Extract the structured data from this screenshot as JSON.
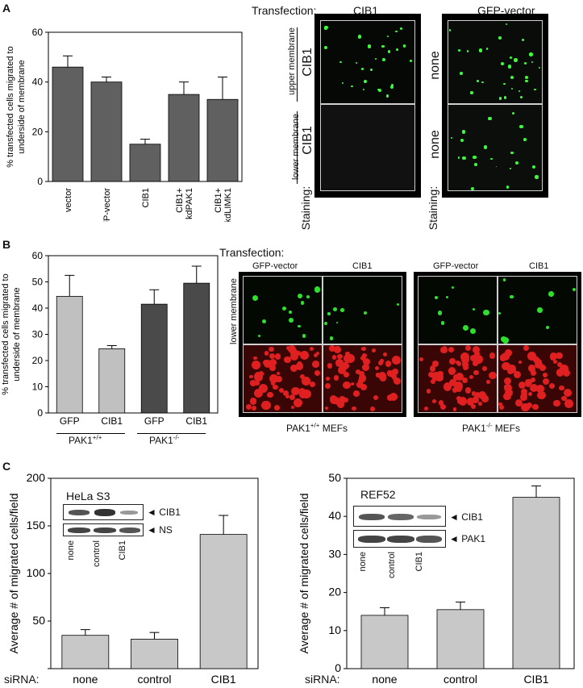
{
  "panels": {
    "A": {
      "label": "A",
      "transfection_label": "Transfection:",
      "transfection_cib1": "CIB1",
      "transfection_gfp": "GFP-vector",
      "upper_membrane": "upper membrane",
      "lower_membrane": "lower membrane",
      "staining_label": "Staining:",
      "stain_cib1_upper": "CIB1",
      "stain_cib1_lower": "CIB1",
      "stain_none_upper": "none",
      "stain_none_lower": "none"
    },
    "B": {
      "label": "B",
      "transfection_label": "Transfection:",
      "col1": "GFP-vector",
      "col2": "CIB1",
      "col3": "GFP-vector",
      "col4": "CIB1",
      "lower_membrane": "lower membrane",
      "caption_left": "PAK1+/+ MEFs",
      "caption_right": "PAK1-/- MEFs",
      "group1": "PAK1+/+",
      "group2": "PAK1-/-"
    },
    "C": {
      "label": "C",
      "hela_title": "HeLa S3",
      "hela_band1": "◄ CIB1",
      "hela_band2": "◄ NS",
      "hela_lanes": [
        "none",
        "control",
        "CIB1"
      ],
      "ref_title": "REF52",
      "ref_band1": "◄ CIB1",
      "ref_band2": "◄ PAK1",
      "ref_lanes": [
        "none",
        "control",
        "CIB1"
      ],
      "sirna_label": "siRNA:"
    }
  },
  "chart_data": [
    {
      "id": "A",
      "type": "bar",
      "categories": [
        "vector",
        "GFP-vector",
        "CIB1",
        "CIB1+ kdPAK1",
        "CIB1+ kdLIMK1"
      ],
      "values": [
        46,
        40,
        15,
        35,
        33
      ],
      "errors": [
        4.5,
        2,
        2,
        5,
        9
      ],
      "ylabel": "% transfected cells migrated to underside of membrane",
      "ylim": [
        0,
        60
      ],
      "yticks": [
        0,
        20,
        40,
        60
      ],
      "bar_color": "#606060"
    },
    {
      "id": "B",
      "type": "bar",
      "categories": [
        "GFP",
        "CIB1",
        "GFP",
        "CIB1"
      ],
      "values": [
        44.5,
        24.5,
        41.5,
        49.5
      ],
      "errors": [
        8,
        1.2,
        5.5,
        6.5
      ],
      "colors": [
        "#c0c0c0",
        "#c0c0c0",
        "#4a4a4a",
        "#4a4a4a"
      ],
      "ylabel": "% transfected cells migrated to underside of membrane",
      "ylim": [
        0,
        60
      ],
      "yticks": [
        0,
        10,
        20,
        30,
        40,
        50,
        60
      ]
    },
    {
      "id": "C1",
      "type": "bar",
      "categories": [
        "none",
        "control",
        "CIB1"
      ],
      "values": [
        35,
        31,
        141
      ],
      "errors": [
        6,
        7,
        20
      ],
      "ylabel": "Average # of migrated cells/field",
      "ylim": [
        0,
        200
      ],
      "yticks": [
        0,
        50,
        100,
        150,
        200
      ],
      "yticklabels": [
        "",
        "50",
        "100",
        "150",
        "200"
      ],
      "bar_color": "#c8c8c8"
    },
    {
      "id": "C2",
      "type": "bar",
      "categories": [
        "none",
        "control",
        "CIB1"
      ],
      "values": [
        14,
        15.5,
        45
      ],
      "errors": [
        2,
        2,
        3
      ],
      "ylabel": "Average # of migrated cells/field",
      "ylim": [
        0,
        50
      ],
      "yticks": [
        0,
        10,
        20,
        30,
        40,
        50
      ],
      "bar_color": "#c8c8c8"
    }
  ]
}
